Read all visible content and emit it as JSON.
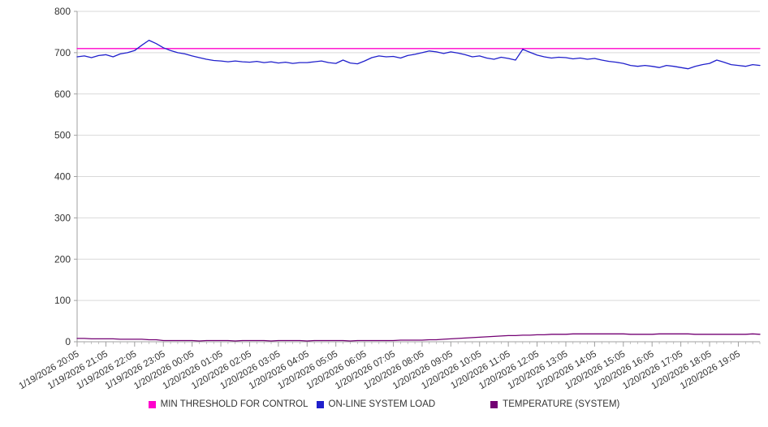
{
  "chart_data": {
    "type": "line",
    "title": "",
    "xlabel": "",
    "ylabel": "",
    "ylim": [
      0,
      800
    ],
    "yticks": [
      0,
      100,
      200,
      300,
      400,
      500,
      600,
      700,
      800
    ],
    "grid": true,
    "legend_position": "bottom",
    "grid_color": "#d9d9d9",
    "axis_color": "#a0a0a0",
    "text_color": "#333333",
    "points_per_label": 4,
    "x_labels": [
      "1/19/2026 20:05",
      "1/19/2026 21:05",
      "1/19/2026 22:05",
      "1/19/2026 23:05",
      "1/20/2026 00:05",
      "1/20/2026 01:05",
      "1/20/2026 02:05",
      "1/20/2026 03:05",
      "1/20/2026 04:05",
      "1/20/2026 05:05",
      "1/20/2026 06:05",
      "1/20/2026 07:05",
      "1/20/2026 08:05",
      "1/20/2026 09:05",
      "1/20/2026 10:05",
      "1/20/2026 11:05",
      "1/20/2026 12:05",
      "1/20/2026 13:05",
      "1/20/2026 14:05",
      "1/20/2026 15:05",
      "1/20/2026 16:05",
      "1/20/2026 17:05",
      "1/20/2026 18:05",
      "1/20/2026 19:05"
    ],
    "series": [
      {
        "id": "min-threshold",
        "name": "MIN THRESHOLD FOR CONTROL",
        "color": "#ff00cc",
        "values": [
          710,
          710
        ]
      },
      {
        "id": "system-load",
        "name": "ON-LINE SYSTEM LOAD",
        "color": "#2020cc",
        "values": [
          690,
          692,
          688,
          693,
          695,
          690,
          697,
          700,
          705,
          718,
          730,
          722,
          712,
          705,
          700,
          697,
          692,
          688,
          684,
          681,
          680,
          678,
          680,
          678,
          677,
          679,
          676,
          678,
          675,
          677,
          674,
          676,
          676,
          678,
          680,
          676,
          674,
          682,
          675,
          673,
          680,
          688,
          692,
          690,
          691,
          687,
          693,
          696,
          700,
          704,
          702,
          698,
          702,
          699,
          695,
          690,
          692,
          687,
          684,
          689,
          686,
          682,
          708,
          701,
          694,
          690,
          687,
          689,
          688,
          685,
          687,
          684,
          686,
          682,
          679,
          677,
          674,
          669,
          667,
          669,
          667,
          664,
          669,
          667,
          664,
          661,
          667,
          671,
          674,
          682,
          677,
          671,
          669,
          667,
          671,
          669
        ]
      },
      {
        "id": "temperature",
        "name": "TEMPERATURE (SYSTEM)",
        "color": "#730073",
        "values": [
          8,
          8,
          7,
          7,
          7,
          7,
          6,
          6,
          6,
          6,
          5,
          5,
          3,
          3,
          3,
          3,
          3,
          2,
          3,
          3,
          3,
          3,
          2,
          3,
          3,
          3,
          3,
          2,
          3,
          3,
          3,
          3,
          2,
          3,
          3,
          3,
          3,
          3,
          2,
          3,
          3,
          3,
          3,
          3,
          3,
          4,
          4,
          4,
          4,
          5,
          5,
          6,
          7,
          8,
          9,
          10,
          11,
          12,
          13,
          14,
          15,
          15,
          16,
          16,
          17,
          17,
          18,
          18,
          18,
          19,
          19,
          19,
          19,
          19,
          19,
          19,
          19,
          18,
          18,
          18,
          18,
          19,
          19,
          19,
          19,
          19,
          18,
          18,
          18,
          18,
          18,
          18,
          18,
          18,
          19,
          18
        ]
      }
    ]
  },
  "legend": {
    "items": [
      {
        "label": "MIN THRESHOLD FOR CONTROL",
        "color": "#ff00cc"
      },
      {
        "label": "ON-LINE SYSTEM LOAD",
        "color": "#2020cc"
      },
      {
        "label": "TEMPERATURE (SYSTEM)",
        "color": "#730073"
      }
    ]
  }
}
